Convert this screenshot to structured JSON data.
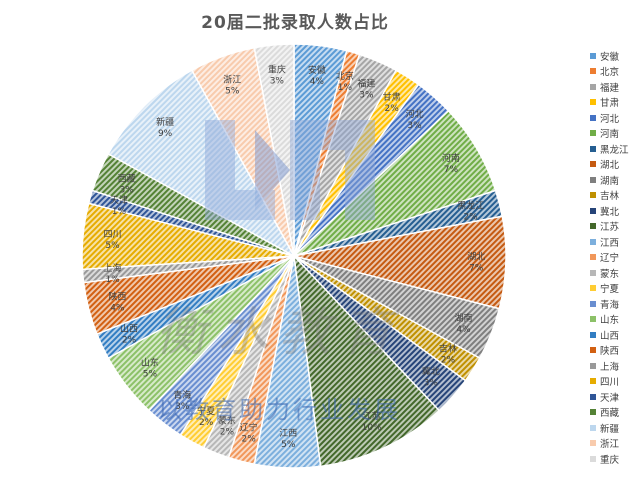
{
  "watermark": {
    "main_text": "衡水教育",
    "slogan": "以教育助力行业发展"
  },
  "chart_data": {
    "type": "pie",
    "title": "20届二批录取人数占比",
    "legend_position": "right",
    "categories": [
      "安徽",
      "北京",
      "福建",
      "甘肃",
      "河北",
      "河南",
      "黑龙江",
      "湖北",
      "湖南",
      "吉林",
      "冀北",
      "江苏",
      "江西",
      "辽宁",
      "蒙东",
      "宁夏",
      "青海",
      "山东",
      "山西",
      "陕西",
      "上海",
      "四川",
      "天津",
      "西藏",
      "新疆",
      "浙江",
      "重庆"
    ],
    "values": [
      4,
      1,
      3,
      2,
      3,
      7,
      2,
      7,
      4,
      2,
      3,
      10,
      5,
      2,
      2,
      2,
      3,
      5,
      2,
      4,
      1,
      5,
      1,
      3,
      9,
      5,
      3
    ],
    "value_labels": [
      "4%",
      "1%",
      "3%",
      "2%",
      "3%",
      "7%",
      "2%",
      "7%",
      "4%",
      "2%",
      "3%",
      "10%",
      "5%",
      "2%",
      "2%",
      "2%",
      "3%",
      "5%",
      "2%",
      "4%",
      "1%",
      "5%",
      "1%",
      "3%",
      "9%",
      "5%",
      "3%"
    ],
    "colors": [
      "#5b9bd5",
      "#ed7d31",
      "#a5a5a5",
      "#ffc000",
      "#4472c4",
      "#70ad47",
      "#255e91",
      "#c55a11",
      "#7f7f7f",
      "#bf9000",
      "#264478",
      "#43682b",
      "#7cafdd",
      "#f1975a",
      "#b7b7b7",
      "#ffcd33",
      "#698ed0",
      "#8cc168",
      "#327dc2",
      "#d26012",
      "#999999",
      "#e6ac00",
      "#2f5597",
      "#548235",
      "#bdd7ee",
      "#f8cbad",
      "#dbdbdb"
    ]
  }
}
